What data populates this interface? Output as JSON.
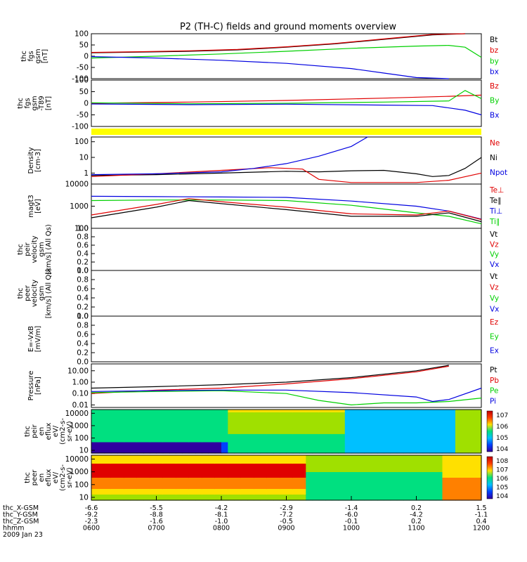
{
  "title": "P2 (TH-C) fields and ground moments overview",
  "colors": {
    "black": "#000000",
    "red": "#e00000",
    "green": "#00d000",
    "blue": "#0000e0",
    "yellow": "#ffff00"
  },
  "chart_data": [
    {
      "type": "line",
      "id": "fgs",
      "ylabel": [
        "thc",
        "fgs",
        "gsm",
        "[nT]"
      ],
      "ylim": [
        -100,
        100
      ],
      "yticks": [
        "100",
        "50",
        "0",
        "-50",
        "-100"
      ],
      "legend": [
        {
          "t": "Bt",
          "c": "black"
        },
        {
          "t": "bz",
          "c": "red"
        },
        {
          "t": "by",
          "c": "green"
        },
        {
          "t": "bx",
          "c": "blue"
        }
      ],
      "series": [
        {
          "name": "Bt",
          "color": "black",
          "x": [
            0,
            15,
            30,
            45,
            60,
            75,
            90,
            105,
            115
          ],
          "y": [
            15,
            18,
            22,
            28,
            40,
            55,
            75,
            95,
            100
          ]
        },
        {
          "name": "bz",
          "color": "red",
          "x": [
            0,
            15,
            30,
            45,
            60,
            75,
            90,
            105,
            115
          ],
          "y": [
            17,
            20,
            24,
            30,
            42,
            57,
            77,
            97,
            100
          ]
        },
        {
          "name": "by",
          "color": "green",
          "x": [
            0,
            20,
            40,
            60,
            80,
            100,
            110,
            115,
            120
          ],
          "y": [
            -8,
            0,
            10,
            22,
            35,
            45,
            48,
            40,
            -5
          ]
        },
        {
          "name": "bx",
          "color": "blue",
          "x": [
            0,
            20,
            40,
            60,
            80,
            90,
            100,
            110
          ],
          "y": [
            -2,
            -8,
            -18,
            -32,
            -55,
            -75,
            -95,
            -100
          ]
        }
      ]
    },
    {
      "type": "line",
      "id": "fgs69",
      "ylabel": [
        "thc",
        "fgs",
        "gsm",
        "-T89",
        "[nT]"
      ],
      "ylim": [
        -100,
        100
      ],
      "yticks": [
        "100",
        "50",
        "0",
        "-50",
        "-100"
      ],
      "legend": [
        {
          "t": "Bz",
          "c": "red"
        },
        {
          "t": "By",
          "c": "green"
        },
        {
          "t": "Bx",
          "c": "blue"
        }
      ],
      "series": [
        {
          "name": "Bz",
          "color": "red",
          "x": [
            0,
            30,
            60,
            90,
            110,
            120
          ],
          "y": [
            0,
            5,
            12,
            22,
            30,
            35
          ]
        },
        {
          "name": "By",
          "color": "green",
          "x": [
            0,
            30,
            60,
            90,
            110,
            115,
            120
          ],
          "y": [
            2,
            -2,
            0,
            5,
            10,
            55,
            20
          ]
        },
        {
          "name": "Bx",
          "color": "blue",
          "x": [
            0,
            30,
            60,
            90,
            105,
            115,
            120
          ],
          "y": [
            -3,
            -6,
            -4,
            -8,
            -10,
            -30,
            -50
          ]
        }
      ]
    },
    {
      "type": "area",
      "id": "bar"
    },
    {
      "type": "line",
      "id": "density",
      "ylabel": [
        "Density",
        "[cm^-3]"
      ],
      "log": true,
      "ylim": [
        0.2,
        200
      ],
      "yticks": [
        "100",
        "10",
        "1"
      ],
      "legend": [
        {
          "t": "Ne",
          "c": "red"
        },
        {
          "t": "Ni",
          "c": "black"
        },
        {
          "t": "Npot",
          "c": "blue"
        }
      ],
      "series": [
        {
          "name": "Ni",
          "color": "black",
          "x": [
            0,
            20,
            40,
            60,
            70,
            80,
            90,
            100,
            105,
            110,
            115,
            120
          ],
          "y": [
            0.7,
            0.8,
            1.0,
            1.3,
            1.2,
            1.4,
            1.5,
            0.9,
            0.6,
            0.7,
            2.0,
            10
          ]
        },
        {
          "name": "Ne",
          "color": "red",
          "x": [
            0,
            20,
            40,
            55,
            65,
            70,
            80,
            90,
            100,
            110,
            120
          ],
          "y": [
            0.6,
            0.9,
            1.5,
            2.2,
            1.8,
            0.4,
            0.25,
            0.25,
            0.25,
            0.35,
            1.0
          ]
        },
        {
          "name": "Npot",
          "color": "blue",
          "x": [
            0,
            20,
            40,
            50,
            60,
            70,
            80,
            85
          ],
          "y": [
            0.8,
            0.9,
            1.2,
            2.0,
            4.0,
            12,
            50,
            200
          ]
        }
      ]
    },
    {
      "type": "line",
      "id": "temp",
      "ylabel": [
        "magt3",
        "[eV]"
      ],
      "log": true,
      "ylim": [
        100,
        10000
      ],
      "yticks": [
        "10000",
        "1000",
        "100"
      ],
      "legend": [
        {
          "t": "Te⊥",
          "c": "red"
        },
        {
          "t": "Te∥",
          "c": "black"
        },
        {
          "t": "Ti⊥",
          "c": "blue"
        },
        {
          "t": "Ti∥",
          "c": "green"
        }
      ],
      "series": [
        {
          "name": "Ti⊥",
          "color": "blue",
          "x": [
            0,
            20,
            40,
            60,
            80,
            100,
            110,
            120
          ],
          "y": [
            2800,
            2700,
            2600,
            2500,
            1700,
            1000,
            600,
            260
          ]
        },
        {
          "name": "Ti∥",
          "color": "green",
          "x": [
            0,
            20,
            40,
            60,
            80,
            100,
            110,
            120
          ],
          "y": [
            1800,
            1900,
            1900,
            1800,
            1100,
            500,
            350,
            160
          ]
        },
        {
          "name": "Te⊥",
          "color": "red",
          "x": [
            0,
            20,
            30,
            40,
            60,
            80,
            100,
            110,
            120
          ],
          "y": [
            400,
            1200,
            2200,
            1600,
            900,
            450,
            400,
            600,
            250
          ]
        },
        {
          "name": "Te∥",
          "color": "black",
          "x": [
            0,
            20,
            30,
            40,
            60,
            80,
            100,
            110,
            120
          ],
          "y": [
            300,
            900,
            1800,
            1300,
            700,
            350,
            350,
            500,
            200
          ]
        }
      ]
    },
    {
      "type": "line",
      "id": "peir_v",
      "ylabel": [
        "thc",
        "peir",
        "velocity",
        "gsm",
        "[km/s] (All Qs)"
      ],
      "ylim": [
        0,
        1
      ],
      "yticks": [
        "1.0",
        "0.8",
        "0.6",
        "0.4",
        "0.2",
        "0.0"
      ],
      "legend": [
        {
          "t": "Vt",
          "c": "black"
        },
        {
          "t": "Vz",
          "c": "red"
        },
        {
          "t": "Vy",
          "c": "green"
        },
        {
          "t": "Vx",
          "c": "blue"
        }
      ],
      "series": []
    },
    {
      "type": "line",
      "id": "peer_v",
      "ylabel": [
        "thc",
        "peer",
        "velocity",
        "gsm",
        "[km/s] (All Qs)"
      ],
      "ylim": [
        0,
        1
      ],
      "yticks": [
        "1.0",
        "0.8",
        "0.6",
        "0.4",
        "0.2",
        "0.0"
      ],
      "legend": [
        {
          "t": "Vt",
          "c": "black"
        },
        {
          "t": "Vz",
          "c": "red"
        },
        {
          "t": "Vy",
          "c": "green"
        },
        {
          "t": "Vx",
          "c": "blue"
        }
      ],
      "series": []
    },
    {
      "type": "line",
      "id": "efield",
      "ylabel": [
        "E=-VxB",
        "[mV/m]"
      ],
      "ylim": [
        0,
        1
      ],
      "yticks": [
        "1.0",
        "0.8",
        "0.6",
        "0.4",
        "0.2",
        "0.0"
      ],
      "legend": [
        {
          "t": "Ez",
          "c": "red"
        },
        {
          "t": "Ey",
          "c": "green"
        },
        {
          "t": "Ex",
          "c": "blue"
        }
      ],
      "series": []
    },
    {
      "type": "line",
      "id": "pressure",
      "ylabel": [
        "Pressure",
        "[nPa]"
      ],
      "log": true,
      "ylim": [
        0.006,
        40
      ],
      "yticks": [
        "10.00",
        "1.00",
        "0.10",
        "0.01"
      ],
      "legend": [
        {
          "t": "Pt",
          "c": "black"
        },
        {
          "t": "Pb",
          "c": "red"
        },
        {
          "t": "Pe",
          "c": "green"
        },
        {
          "t": "Pi",
          "c": "blue"
        }
      ],
      "series": [
        {
          "name": "Pt",
          "color": "black",
          "x": [
            0,
            20,
            40,
            60,
            80,
            100,
            110
          ],
          "y": [
            0.3,
            0.4,
            0.6,
            1.0,
            2.5,
            10,
            30
          ]
        },
        {
          "name": "Pb",
          "color": "red",
          "x": [
            0,
            20,
            40,
            60,
            80,
            100,
            110
          ],
          "y": [
            0.1,
            0.2,
            0.3,
            0.7,
            2.0,
            8,
            25
          ]
        },
        {
          "name": "Pe",
          "color": "green",
          "x": [
            0,
            20,
            40,
            60,
            70,
            80,
            90,
            100,
            110,
            120
          ],
          "y": [
            0.12,
            0.15,
            0.18,
            0.1,
            0.025,
            0.01,
            0.015,
            0.015,
            0.02,
            0.04
          ]
        },
        {
          "name": "Pi",
          "color": "blue",
          "x": [
            0,
            20,
            40,
            60,
            80,
            100,
            105,
            110,
            120
          ],
          "y": [
            0.15,
            0.18,
            0.2,
            0.2,
            0.12,
            0.05,
            0.02,
            0.03,
            0.3
          ]
        }
      ]
    },
    {
      "type": "heatmap",
      "id": "peir",
      "ylabel": [
        "thc",
        "peir",
        "en",
        "eflux",
        "eV/",
        "(cm^2-s-",
        "sr-eV)"
      ],
      "log": true,
      "ylim": [
        6,
        20000
      ],
      "yticks": [
        "10000",
        "1000",
        "100",
        "10"
      ],
      "colorbar": [
        "10^7",
        "10^6",
        "10^5",
        "10^4"
      ]
    },
    {
      "type": "heatmap",
      "id": "peer",
      "ylabel": [
        "thc",
        "peer",
        "en",
        "eflux",
        "eV/",
        "(cm^2-s-",
        "sr-eV)"
      ],
      "log": true,
      "ylim": [
        6,
        20000
      ],
      "yticks": [
        "10000",
        "1000",
        "100",
        "10"
      ],
      "colorbar": [
        "10^8",
        "10^7",
        "10^6",
        "10^5",
        "10^4"
      ]
    }
  ],
  "xaxis": {
    "rows": [
      {
        "label": "thc_X-GSM",
        "values": [
          "-6.6",
          "-5.5",
          "-4.2",
          "-2.9",
          "-1.4",
          "0.2",
          "1.5"
        ]
      },
      {
        "label": "thc_Y-GSM",
        "values": [
          "-9.2",
          "-8.8",
          "-8.1",
          "-7.2",
          "-6.0",
          "-4.2",
          "-1.1"
        ]
      },
      {
        "label": "thc_Z-GSM",
        "values": [
          "-2.3",
          "-1.6",
          "-1.0",
          "-0.5",
          "-0.1",
          "0.2",
          "0.4"
        ]
      },
      {
        "label": "hhmm",
        "values": [
          "0600",
          "0700",
          "0800",
          "0900",
          "1000",
          "1100",
          "1200"
        ]
      }
    ],
    "date": "2009 Jan 23"
  }
}
